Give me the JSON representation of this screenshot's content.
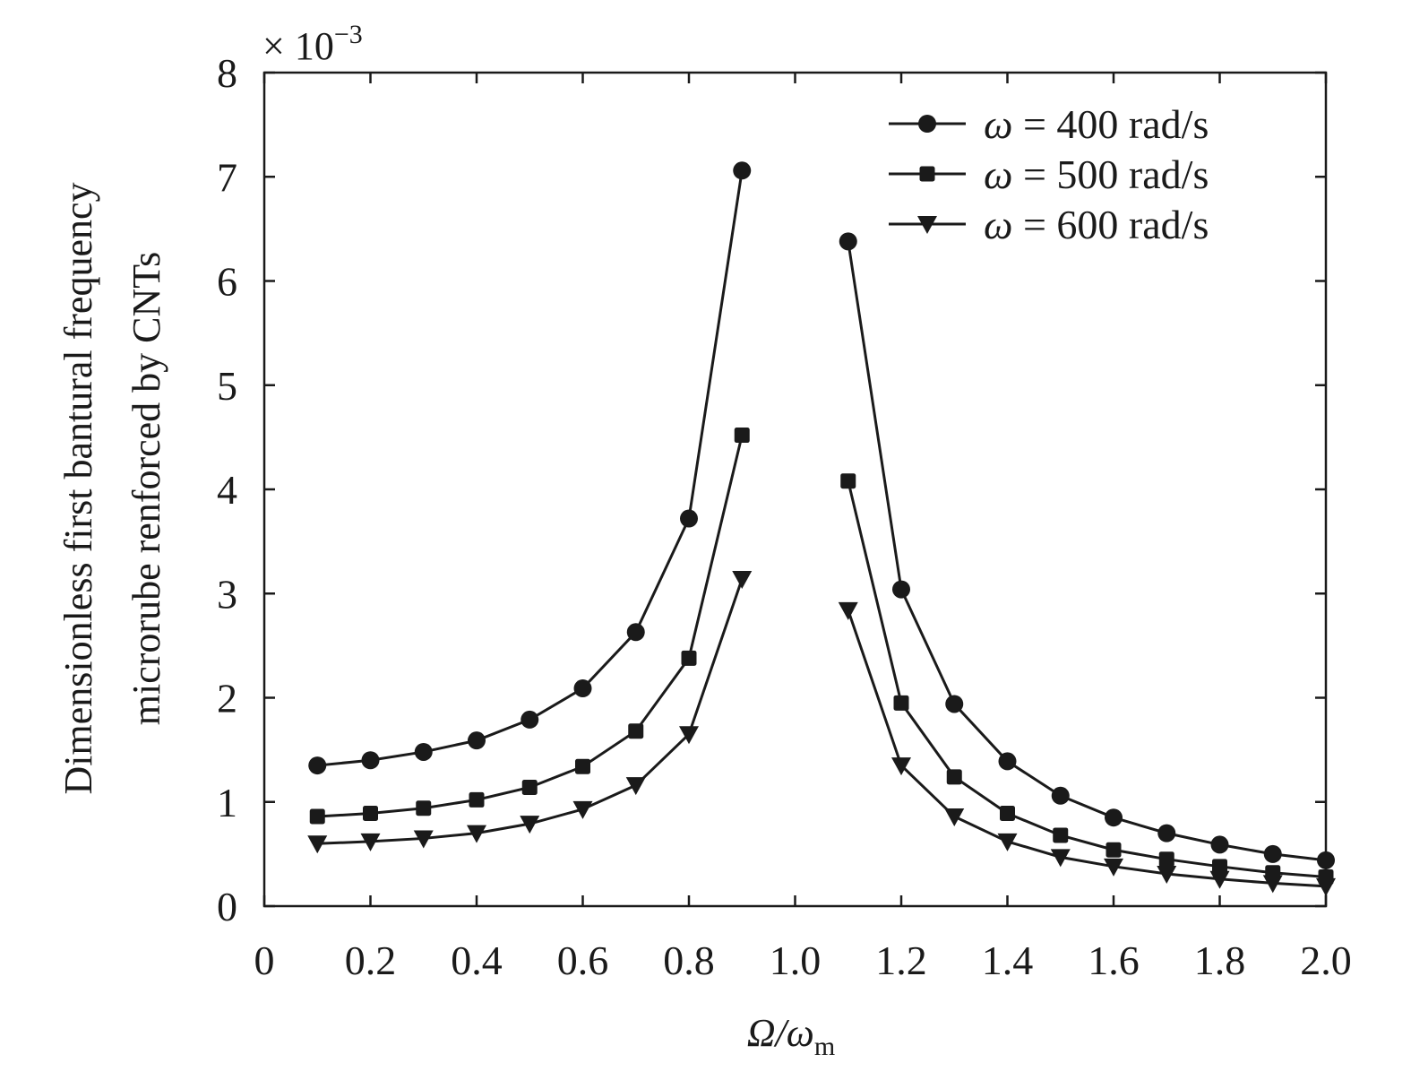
{
  "chart_data": {
    "type": "line",
    "title": "",
    "xlabel": {
      "main": "Ω/ω",
      "sub": "m"
    },
    "ylabel": {
      "line1": "Dimensionless first bantural frequency",
      "line2": "microrube renforced by CNTs"
    },
    "y_exponent": {
      "prefix": "× 10",
      "power": "−3"
    },
    "xlim": [
      0,
      2.0
    ],
    "ylim": [
      0,
      8
    ],
    "x_ticks": [
      0,
      0.2,
      0.4,
      0.6,
      0.8,
      1.0,
      1.2,
      1.4,
      1.6,
      1.8,
      2.0
    ],
    "x_tick_labels": [
      "0",
      "0.2",
      "0.4",
      "0.6",
      "0.8",
      "1.0",
      "1.2",
      "1.4",
      "1.6",
      "1.8",
      "2.0"
    ],
    "y_ticks": [
      0,
      1,
      2,
      3,
      4,
      5,
      6,
      7,
      8
    ],
    "y_tick_labels": [
      "0",
      "1",
      "2",
      "3",
      "4",
      "5",
      "6",
      "7",
      "8"
    ],
    "grid": false,
    "legend_position": "top-right",
    "series": [
      {
        "name": "ω = 400 rad/s",
        "legend_symbol": "ω",
        "legend_rest": " = 400 rad/s",
        "marker": "circle",
        "color": "#1a1a1a",
        "segments": [
          {
            "x": [
              0.1,
              0.2,
              0.3,
              0.4,
              0.5,
              0.6,
              0.7,
              0.8,
              0.9
            ],
            "y": [
              1.35,
              1.4,
              1.48,
              1.59,
              1.79,
              2.09,
              2.63,
              3.72,
              7.06
            ]
          },
          {
            "x": [
              1.1,
              1.2,
              1.3,
              1.4,
              1.5,
              1.6,
              1.7,
              1.8,
              1.9,
              2.0
            ],
            "y": [
              6.38,
              3.04,
              1.94,
              1.39,
              1.06,
              0.85,
              0.7,
              0.59,
              0.5,
              0.44
            ]
          }
        ]
      },
      {
        "name": "ω = 500 rad/s",
        "legend_symbol": "ω",
        "legend_rest": " = 500 rad/s",
        "marker": "square",
        "color": "#1a1a1a",
        "segments": [
          {
            "x": [
              0.1,
              0.2,
              0.3,
              0.4,
              0.5,
              0.6,
              0.7,
              0.8,
              0.9
            ],
            "y": [
              0.86,
              0.89,
              0.94,
              1.02,
              1.14,
              1.34,
              1.68,
              2.38,
              4.52
            ]
          },
          {
            "x": [
              1.1,
              1.2,
              1.3,
              1.4,
              1.5,
              1.6,
              1.7,
              1.8,
              1.9,
              2.0
            ],
            "y": [
              4.08,
              1.95,
              1.24,
              0.89,
              0.68,
              0.54,
              0.45,
              0.38,
              0.32,
              0.28
            ]
          }
        ]
      },
      {
        "name": "ω = 600 rad/s",
        "legend_symbol": "ω",
        "legend_rest": " = 600 rad/s",
        "marker": "triangle-down",
        "color": "#1a1a1a",
        "segments": [
          {
            "x": [
              0.1,
              0.2,
              0.3,
              0.4,
              0.5,
              0.6,
              0.7,
              0.8,
              0.9
            ],
            "y": [
              0.6,
              0.62,
              0.65,
              0.7,
              0.79,
              0.93,
              1.16,
              1.65,
              3.14
            ]
          },
          {
            "x": [
              1.1,
              1.2,
              1.3,
              1.4,
              1.5,
              1.6,
              1.7,
              1.8,
              1.9,
              2.0
            ],
            "y": [
              2.84,
              1.35,
              0.86,
              0.62,
              0.47,
              0.38,
              0.31,
              0.26,
              0.22,
              0.19
            ]
          }
        ]
      }
    ]
  }
}
